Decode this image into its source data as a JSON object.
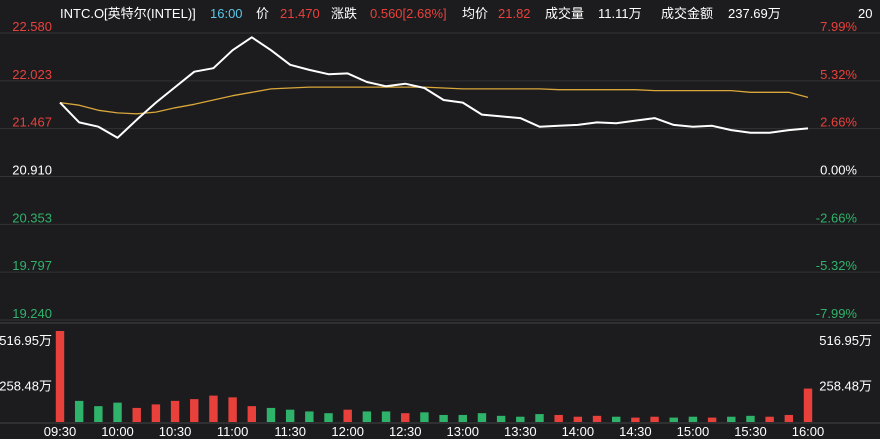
{
  "header": {
    "symbol": "INTC.O[英特尔(INTEL)]",
    "time": "16:00",
    "price_label": "价",
    "price": "21.470",
    "change_label": "涨跌",
    "change": "0.560[2.68%]",
    "avg_label": "均价",
    "avg": "21.82",
    "volume_label": "成交量",
    "volume": "11.11万",
    "amount_label": "成交金额",
    "amount": "237.69万",
    "extra": "20"
  },
  "chart_data": [
    {
      "type": "line",
      "x": [
        0,
        10,
        20,
        30,
        40,
        50,
        60,
        70,
        80,
        90,
        100,
        110,
        120,
        130,
        140,
        150,
        160,
        170,
        180,
        190,
        200,
        210,
        220,
        230,
        240,
        250,
        260,
        270,
        280,
        290,
        300,
        310,
        320,
        330,
        340,
        350,
        360,
        370,
        380,
        390
      ],
      "xlim": [
        0,
        390
      ],
      "xticks": [
        {
          "value": 0,
          "label": "09:30"
        },
        {
          "value": 30,
          "label": "10:00"
        },
        {
          "value": 60,
          "label": "10:30"
        },
        {
          "value": 90,
          "label": "11:00"
        },
        {
          "value": 120,
          "label": "11:30"
        },
        {
          "value": 150,
          "label": "12:00"
        },
        {
          "value": 180,
          "label": "12:30"
        },
        {
          "value": 210,
          "label": "13:00"
        },
        {
          "value": 240,
          "label": "13:30"
        },
        {
          "value": 270,
          "label": "14:00"
        },
        {
          "value": 300,
          "label": "14:30"
        },
        {
          "value": 330,
          "label": "15:00"
        },
        {
          "value": 360,
          "label": "15:30"
        },
        {
          "value": 390,
          "label": "16:00"
        }
      ],
      "ylim": [
        19.24,
        22.58
      ],
      "yticks": [
        {
          "value": 22.58,
          "label": "22.580"
        },
        {
          "value": 22.023,
          "label": "22.023"
        },
        {
          "value": 21.467,
          "label": "21.467"
        },
        {
          "value": 20.91,
          "label": "20.910"
        },
        {
          "value": 20.353,
          "label": "20.353"
        },
        {
          "value": 19.797,
          "label": "19.797"
        },
        {
          "value": 19.24,
          "label": "19.240"
        }
      ],
      "y2lim": [
        -7.99,
        7.99
      ],
      "y2ticks": [
        {
          "value": 7.99,
          "label": "7.99%"
        },
        {
          "value": 5.32,
          "label": "5.32%"
        },
        {
          "value": 2.66,
          "label": "2.66%"
        },
        {
          "value": 0,
          "label": "0.00%"
        },
        {
          "value": -2.66,
          "label": "-2.66%"
        },
        {
          "value": -5.32,
          "label": "-5.32%"
        },
        {
          "value": -7.99,
          "label": "-7.99%"
        }
      ],
      "grid": true,
      "series": [
        {
          "color": "#ffffff",
          "values": [
            21.77,
            21.54,
            21.49,
            21.36,
            21.57,
            21.77,
            21.95,
            22.13,
            22.17,
            22.38,
            22.53,
            22.38,
            22.21,
            22.15,
            22.1,
            22.11,
            22.01,
            21.96,
            21.99,
            21.94,
            21.8,
            21.77,
            21.63,
            21.61,
            21.59,
            21.49,
            21.5,
            21.51,
            21.54,
            21.53,
            21.56,
            21.59,
            21.51,
            21.49,
            21.5,
            21.45,
            21.42,
            21.42,
            21.45,
            21.47
          ]
        },
        {
          "color": "#d9a63a",
          "values": [
            21.77,
            21.74,
            21.68,
            21.65,
            21.64,
            21.66,
            21.71,
            21.75,
            21.8,
            21.85,
            21.89,
            21.93,
            21.94,
            21.95,
            21.95,
            21.95,
            21.95,
            21.95,
            21.95,
            21.95,
            21.94,
            21.93,
            21.93,
            21.93,
            21.93,
            21.93,
            21.92,
            21.92,
            21.92,
            21.92,
            21.92,
            21.91,
            21.91,
            21.91,
            21.91,
            21.91,
            21.89,
            21.89,
            21.89,
            21.83
          ]
        }
      ]
    },
    {
      "type": "bar",
      "x": [
        0,
        10,
        20,
        30,
        40,
        50,
        60,
        70,
        80,
        90,
        100,
        110,
        120,
        130,
        140,
        150,
        160,
        170,
        180,
        190,
        200,
        210,
        220,
        230,
        240,
        250,
        260,
        270,
        280,
        290,
        300,
        310,
        320,
        330,
        340,
        350,
        360,
        370,
        380,
        390
      ],
      "xlim": [
        0,
        390
      ],
      "ylim": [
        0,
        516.95
      ],
      "yticks": [
        {
          "value": 516.95,
          "label": "516.95万"
        },
        {
          "value": 258.48,
          "label": "258.48万"
        }
      ],
      "values": [
        516.95,
        120,
        90,
        110,
        80,
        100,
        120,
        130,
        150,
        140,
        90,
        80,
        70,
        60,
        50,
        70,
        60,
        60,
        50,
        55,
        40,
        40,
        50,
        35,
        30,
        45,
        40,
        30,
        35,
        30,
        25,
        30,
        25,
        30,
        25,
        30,
        35,
        30,
        40,
        190
      ],
      "colors": [
        "#e8413c",
        "#2fb36a",
        "#2fb36a",
        "#2fb36a",
        "#e8413c",
        "#e8413c",
        "#e8413c",
        "#e8413c",
        "#e8413c",
        "#e8413c",
        "#e8413c",
        "#2fb36a",
        "#2fb36a",
        "#2fb36a",
        "#2fb36a",
        "#e8413c",
        "#2fb36a",
        "#2fb36a",
        "#e8413c",
        "#2fb36a",
        "#2fb36a",
        "#2fb36a",
        "#2fb36a",
        "#2fb36a",
        "#2fb36a",
        "#2fb36a",
        "#e8413c",
        "#e8413c",
        "#e8413c",
        "#2fb36a",
        "#e8413c",
        "#e8413c",
        "#2fb36a",
        "#2fb36a",
        "#e8413c",
        "#2fb36a",
        "#2fb36a",
        "#e8413c",
        "#e8413c",
        "#e8413c"
      ]
    }
  ]
}
